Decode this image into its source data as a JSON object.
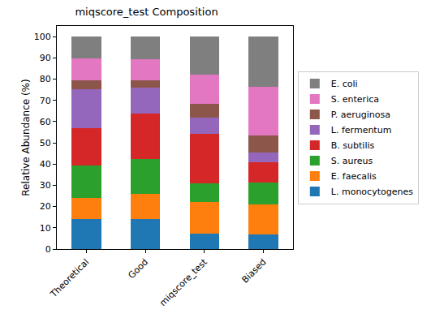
{
  "chart_data": {
    "type": "bar",
    "stacked": true,
    "title": "miqscore_test Composition",
    "y_label": "Relative Abundance (%)",
    "categories": [
      "Theoretical",
      "Good",
      "miqscore_test",
      "Biased"
    ],
    "series": [
      {
        "name": "L. monocytogenes",
        "color": "#1f77b4",
        "values": [
          14.0,
          14.1,
          7.3,
          6.7
        ]
      },
      {
        "name": "E. faecalis",
        "color": "#ff7f0e",
        "values": [
          10.0,
          12.0,
          15.0,
          14.2
        ]
      },
      {
        "name": "S. aureus",
        "color": "#2ca02c",
        "values": [
          15.5,
          16.3,
          8.6,
          10.5
        ]
      },
      {
        "name": "B. subtilis",
        "color": "#d62728",
        "values": [
          17.4,
          21.4,
          23.2,
          9.4
        ]
      },
      {
        "name": "L. fermentum",
        "color": "#9467bd",
        "values": [
          18.4,
          12.3,
          7.6,
          4.7
        ]
      },
      {
        "name": "P. aeruginosa",
        "color": "#8c564b",
        "values": [
          4.2,
          3.3,
          6.8,
          7.9
        ]
      },
      {
        "name": "S. enterica",
        "color": "#e377c2",
        "values": [
          10.4,
          9.8,
          13.6,
          22.8
        ]
      },
      {
        "name": "E. coli",
        "color": "#7f7f7f",
        "values": [
          10.1,
          10.8,
          17.9,
          23.8
        ]
      }
    ],
    "ylim": [
      0,
      105
    ],
    "yticks": [
      0,
      10,
      20,
      30,
      40,
      50,
      60,
      70,
      80,
      90,
      100
    ],
    "grid": false,
    "legend": "right"
  }
}
